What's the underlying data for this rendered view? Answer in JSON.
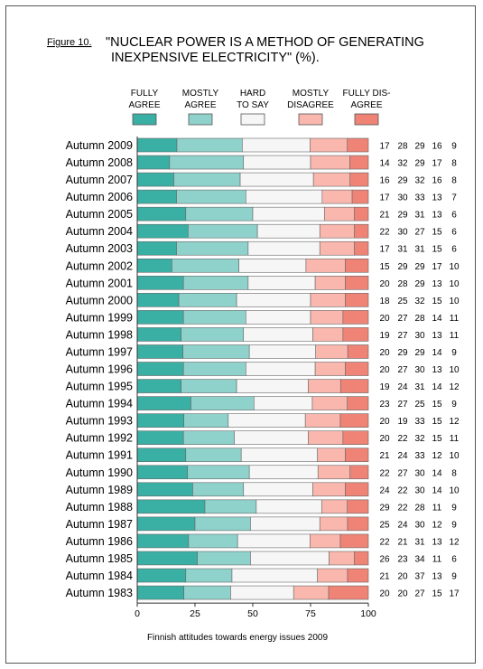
{
  "figure_label": "Figure 10.",
  "title_line1": "\"NUCLEAR POWER IS A METHOD OF GENERATING",
  "title_line2": "INEXPENSIVE ELECTRICITY\"  (%).",
  "footer": "Finnish attitudes towards energy issues 2009",
  "colors": {
    "fully_agree": "#3aafa3",
    "mostly_agree": "#8fd1cb",
    "hard_to_say": "#f6f6f6",
    "mostly_disagree": "#f9b7ae",
    "fully_disagree": "#ee8376"
  },
  "chart_data": {
    "type": "bar",
    "orientation": "horizontal",
    "stacked": true,
    "xlim": [
      0,
      100
    ],
    "x_ticks": [
      "0",
      "25",
      "50",
      "75",
      "100"
    ],
    "legend_position": "top",
    "legend": [
      {
        "line1": "FULLY",
        "line2": "AGREE"
      },
      {
        "line1": "MOSTLY",
        "line2": "AGREE"
      },
      {
        "line1": "HARD",
        "line2": "TO SAY"
      },
      {
        "line1": "MOSTLY",
        "line2": "DISAGREE"
      },
      {
        "line1": "FULLY DIS-",
        "line2": "AGREE"
      }
    ],
    "categories": [
      "Autumn 2009",
      "Autumn 2008",
      "Autumn 2007",
      "Autumn 2006",
      "Autumn 2005",
      "Autumn 2004",
      "Autumn 2003",
      "Autumn 2002",
      "Autumn 2001",
      "Autumn 2000",
      "Autumn 1999",
      "Autumn 1998",
      "Autumn 1997",
      "Autumn 1996",
      "Autumn 1995",
      "Autumn 1994",
      "Autumn 1993",
      "Autumn 1992",
      "Autumn 1991",
      "Autumn 1990",
      "Autumn 1989",
      "Autumn 1988",
      "Autumn 1987",
      "Autumn 1986",
      "Autumn 1985",
      "Autumn 1984",
      "Autumn 1983"
    ],
    "rows": [
      [
        17,
        28,
        29,
        16,
        9
      ],
      [
        14,
        32,
        29,
        17,
        8
      ],
      [
        16,
        29,
        32,
        16,
        8
      ],
      [
        17,
        30,
        33,
        13,
        7
      ],
      [
        21,
        29,
        31,
        13,
        6
      ],
      [
        22,
        30,
        27,
        15,
        6
      ],
      [
        17,
        31,
        31,
        15,
        6
      ],
      [
        15,
        29,
        29,
        17,
        10
      ],
      [
        20,
        28,
        29,
        13,
        10
      ],
      [
        18,
        25,
        32,
        15,
        10
      ],
      [
        20,
        27,
        28,
        14,
        11
      ],
      [
        19,
        27,
        30,
        13,
        11
      ],
      [
        20,
        29,
        29,
        14,
        9
      ],
      [
        20,
        27,
        30,
        13,
        10
      ],
      [
        19,
        24,
        31,
        14,
        12
      ],
      [
        23,
        27,
        25,
        15,
        9
      ],
      [
        20,
        19,
        33,
        15,
        12
      ],
      [
        20,
        22,
        32,
        15,
        11
      ],
      [
        21,
        24,
        33,
        12,
        10
      ],
      [
        22,
        27,
        30,
        14,
        8
      ],
      [
        24,
        22,
        30,
        14,
        10
      ],
      [
        29,
        22,
        28,
        11,
        9
      ],
      [
        25,
        24,
        30,
        12,
        9
      ],
      [
        22,
        21,
        31,
        13,
        12
      ],
      [
        26,
        23,
        34,
        11,
        6
      ],
      [
        21,
        20,
        37,
        13,
        9
      ],
      [
        20,
        20,
        27,
        15,
        17
      ]
    ]
  }
}
